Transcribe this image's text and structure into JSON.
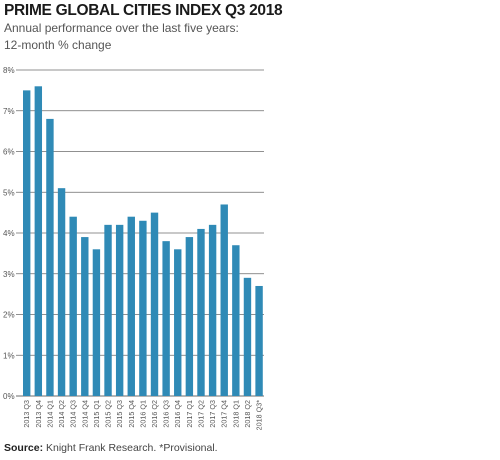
{
  "header": {
    "title": "PRIME GLOBAL CITIES INDEX Q3 2018",
    "subtitle_line1": "Annual performance over the last five years:",
    "subtitle_line2": "12-month % change"
  },
  "footer": {
    "source_label": "Source:",
    "source_text": " Knight Frank Research. *Provisional."
  },
  "colors": {
    "bar": "#2f8ab6",
    "grid": "#6b6b6b",
    "axis_text": "#555555"
  },
  "chart_data": {
    "type": "bar",
    "title": "PRIME GLOBAL CITIES INDEX Q3 2018",
    "xlabel": "",
    "ylabel": "",
    "ylim": [
      0,
      8
    ],
    "yticks": [
      "0%",
      "1%",
      "2%",
      "3%",
      "4%",
      "5%",
      "6%",
      "7%",
      "8%"
    ],
    "grid": true,
    "categories": [
      "2013 Q3",
      "2013 Q4",
      "2014 Q1",
      "2014 Q2",
      "2014 Q3",
      "2014 Q4",
      "2015 Q1",
      "2015 Q2",
      "2015 Q3",
      "2015 Q4",
      "2016 Q1",
      "2016 Q2",
      "2016 Q3",
      "2016 Q4",
      "2017 Q1",
      "2017 Q2",
      "2017 Q3",
      "2017 Q4",
      "2018 Q1",
      "2018 Q2",
      "2018 Q3*"
    ],
    "values": [
      7.5,
      7.6,
      6.8,
      5.1,
      4.4,
      3.9,
      3.6,
      4.2,
      4.2,
      4.4,
      4.3,
      4.5,
      3.8,
      3.6,
      3.9,
      4.1,
      4.2,
      4.7,
      3.7,
      2.9,
      2.7
    ]
  }
}
